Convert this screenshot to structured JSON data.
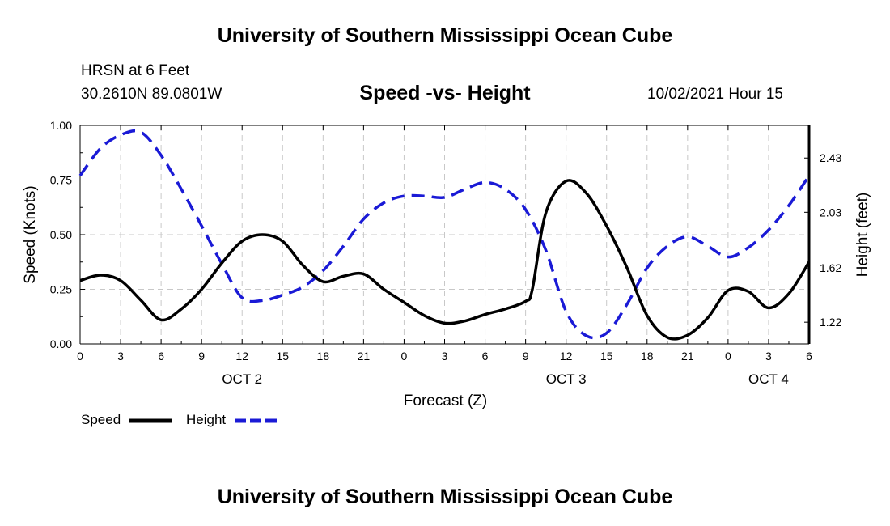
{
  "header": {
    "title": "University of Southern Mississippi Ocean Cube",
    "station": "HRSN at 6 Feet",
    "coords": "30.2610N  89.0801W",
    "datetime": "10/02/2021 Hour 15"
  },
  "footer": {
    "title": "University of Southern Mississippi Ocean Cube"
  },
  "legend": {
    "speed_label": "Speed",
    "height_label": "Height"
  },
  "colors": {
    "speed": "#000000",
    "height": "#1a1ad6",
    "grid": "#c8c8c8"
  },
  "chart_data": {
    "type": "line",
    "title": "Speed -vs- Height",
    "xlabel": "Forecast (Z)",
    "ylabel": "Speed (Knots)",
    "y2label": "Height (feet)",
    "xlim": [
      0,
      54
    ],
    "ylim": [
      0,
      1
    ],
    "y2lim": [
      1.06,
      2.67
    ],
    "x_ticks": [
      {
        "x": 0,
        "label": "0"
      },
      {
        "x": 3,
        "label": "3"
      },
      {
        "x": 6,
        "label": "6"
      },
      {
        "x": 9,
        "label": "9"
      },
      {
        "x": 12,
        "label": "12"
      },
      {
        "x": 15,
        "label": "15"
      },
      {
        "x": 18,
        "label": "18"
      },
      {
        "x": 21,
        "label": "21"
      },
      {
        "x": 24,
        "label": "0"
      },
      {
        "x": 27,
        "label": "3"
      },
      {
        "x": 30,
        "label": "6"
      },
      {
        "x": 33,
        "label": "9"
      },
      {
        "x": 36,
        "label": "12"
      },
      {
        "x": 39,
        "label": "15"
      },
      {
        "x": 42,
        "label": "18"
      },
      {
        "x": 45,
        "label": "21"
      },
      {
        "x": 48,
        "label": "0"
      },
      {
        "x": 51,
        "label": "3"
      },
      {
        "x": 54,
        "label": "6"
      }
    ],
    "day_labels": [
      {
        "x": 12,
        "label": "OCT 2"
      },
      {
        "x": 36,
        "label": "OCT 3"
      },
      {
        "x": 51,
        "label": "OCT 4"
      }
    ],
    "y_ticks": [
      "0.00",
      "0.25",
      "0.50",
      "0.75",
      "1.00"
    ],
    "y_tick_values": [
      0,
      0.25,
      0.5,
      0.75,
      1.0
    ],
    "y2_ticks": [
      "1.22",
      "1.62",
      "2.03",
      "2.43"
    ],
    "y2_tick_values": [
      1.22,
      1.62,
      2.03,
      2.43
    ],
    "series": [
      {
        "name": "Speed",
        "axis": "left",
        "x": [
          0,
          1.5,
          3,
          4.5,
          6,
          7.5,
          9,
          10.5,
          12,
          13.5,
          15,
          16.5,
          18,
          19.5,
          21,
          22.5,
          24,
          25.5,
          27,
          28.5,
          30,
          31.5,
          33,
          33.5,
          34.5,
          36,
          37.5,
          39,
          40.5,
          42,
          43.5,
          45,
          46.5,
          48,
          49.5,
          51,
          52.5,
          54
        ],
        "values": [
          0.29,
          0.315,
          0.29,
          0.2,
          0.11,
          0.16,
          0.25,
          0.37,
          0.47,
          0.5,
          0.47,
          0.36,
          0.285,
          0.31,
          0.32,
          0.25,
          0.19,
          0.13,
          0.095,
          0.105,
          0.135,
          0.16,
          0.195,
          0.25,
          0.6,
          0.745,
          0.69,
          0.54,
          0.35,
          0.13,
          0.03,
          0.04,
          0.12,
          0.245,
          0.24,
          0.165,
          0.23,
          0.375
        ]
      },
      {
        "name": "Height",
        "axis": "right",
        "x": [
          0,
          1.5,
          3,
          4.5,
          6,
          7.5,
          9,
          10.5,
          12,
          13.5,
          15,
          16.5,
          18,
          19.5,
          21,
          22.5,
          24,
          25.5,
          27,
          28.5,
          30,
          31.5,
          33,
          34.5,
          36,
          37.5,
          39,
          40.5,
          42,
          43.5,
          45,
          46.5,
          48,
          49.5,
          51,
          52.5,
          54
        ],
        "values": [
          2.3,
          2.5,
          2.6,
          2.62,
          2.45,
          2.2,
          1.93,
          1.65,
          1.4,
          1.38,
          1.42,
          1.48,
          1.6,
          1.78,
          1.98,
          2.1,
          2.15,
          2.15,
          2.14,
          2.2,
          2.25,
          2.2,
          2.05,
          1.75,
          1.3,
          1.12,
          1.14,
          1.35,
          1.62,
          1.78,
          1.85,
          1.78,
          1.7,
          1.77,
          1.9,
          2.08,
          2.3
        ]
      }
    ]
  }
}
